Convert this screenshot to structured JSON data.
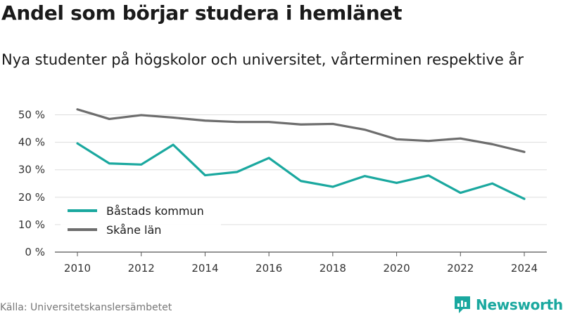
{
  "header": {
    "title": "Andel som börjar studera i hemlänet",
    "subtitle": "Nya studenter på högskolor och universitet, vårterminen respektive år"
  },
  "footer": {
    "source": "Källa: Universitetskanslersämbetet",
    "brand": "Newsworthy",
    "brand_color": "#1aa89f",
    "brand_icon": "newsworthy-logo-icon"
  },
  "chart_data": {
    "type": "line",
    "x": [
      2010,
      2011,
      2012,
      2013,
      2014,
      2015,
      2016,
      2017,
      2018,
      2019,
      2020,
      2021,
      2022,
      2023,
      2024
    ],
    "x_ticks": [
      "2010",
      "2012",
      "2014",
      "2016",
      "2018",
      "2020",
      "2022",
      "2024"
    ],
    "y_ticks": [
      "0 %",
      "10 %",
      "20 %",
      "30 %",
      "40 %",
      "50 %"
    ],
    "ylim": [
      0,
      55
    ],
    "grid": true,
    "legend_position": "lower-left",
    "series": [
      {
        "name": "Båstads kommun",
        "color": "#1aa89f",
        "values": [
          39.6,
          32.3,
          31.9,
          39.1,
          28.0,
          29.2,
          34.3,
          25.9,
          23.8,
          27.7,
          25.2,
          27.9,
          21.6,
          25.0,
          19.4
        ]
      },
      {
        "name": "Skåne län",
        "color": "#6d6d6d",
        "values": [
          52.0,
          48.5,
          49.9,
          49.0,
          47.9,
          47.4,
          47.4,
          46.5,
          46.7,
          44.6,
          41.1,
          40.5,
          41.4,
          39.3,
          36.5
        ]
      }
    ]
  }
}
